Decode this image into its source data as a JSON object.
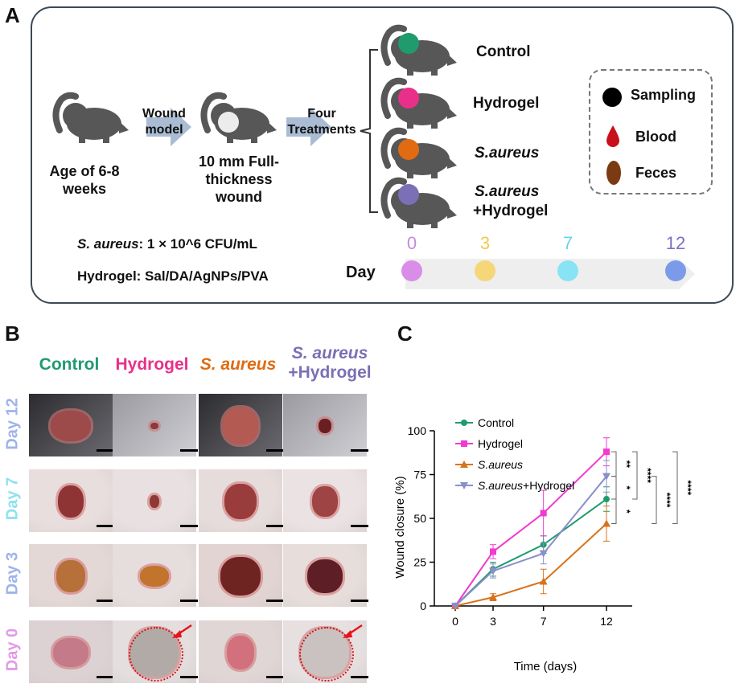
{
  "panelA": {
    "letter": "A",
    "mouse_age": "Age of 6-8 weeks",
    "arrow1_label": "Wound model",
    "wound_label": "10 mm Full-thickness wound",
    "arrow2_label": "Four Treatments",
    "groups": [
      {
        "label": "Control",
        "color": "#1f9b6e"
      },
      {
        "label": "Hydrogel",
        "color": "#e8308a"
      },
      {
        "label": "S.aureus",
        "color": "#e06b12"
      },
      {
        "label_line1": "S.aureus",
        "label_line2": "+Hydrogel",
        "color": "#7b6fb6"
      }
    ],
    "legend": [
      {
        "label": "Sampling",
        "icon": "black-circle-icon"
      },
      {
        "label": "Blood",
        "icon": "blood-drop-icon"
      },
      {
        "label": "Feces",
        "icon": "feces-icon"
      }
    ],
    "saureus_prefix": "S. aureus",
    "saureus_conc": ": 1 × 10^6 CFU/mL",
    "hydrogel_line": "Hydrogel: Sal/DA/AgNPs/PVA",
    "timeline_label": "Day",
    "timeline_days": [
      {
        "day": "0",
        "color": "#d98de8",
        "text_color": "#c58ad9"
      },
      {
        "day": "3",
        "color": "#f5d77a",
        "text_color": "#f2c94c"
      },
      {
        "day": "7",
        "color": "#88e3f5",
        "text_color": "#66d2ef"
      },
      {
        "day": "12",
        "color": "#7b9bea",
        "text_color": "#7a70c4"
      }
    ]
  },
  "panelB": {
    "letter": "B",
    "columns": [
      {
        "label": "Control",
        "color": "#1f9b6e"
      },
      {
        "label": "Hydrogel",
        "color": "#e8308a"
      },
      {
        "label": "S. aureus",
        "color": "#e06b12"
      },
      {
        "label_line1": "S. aureus",
        "label_line2": "+Hydrogel",
        "color": "#7b6fb6"
      }
    ],
    "rows": [
      {
        "label": "Day 12",
        "color": "#9fb3ea"
      },
      {
        "label": "Day 7",
        "color": "#8fe0f0"
      },
      {
        "label": "Day 3",
        "color": "#9fb3ea"
      },
      {
        "label": "Day 0",
        "color": "#e39ae8"
      }
    ]
  },
  "panelC": {
    "letter": "C",
    "chart_data": {
      "type": "line",
      "title": "",
      "xlabel": "Time (days)",
      "ylabel": "Wound closure (%)",
      "x": [
        0,
        3,
        7,
        12
      ],
      "x_tick_labels": [
        "0",
        "3",
        "7",
        "12"
      ],
      "ylim": [
        0,
        100
      ],
      "y_ticks": [
        0,
        25,
        50,
        75,
        100
      ],
      "series": [
        {
          "name": "Control",
          "color": "#1f9b6e",
          "marker": "circle",
          "values": [
            0,
            21,
            35,
            61
          ],
          "errors": [
            0,
            4,
            5,
            7
          ]
        },
        {
          "name": "Hydrogel",
          "color": "#f03ad1",
          "marker": "square",
          "values": [
            0,
            31,
            53,
            88
          ],
          "errors": [
            0,
            4,
            13,
            8
          ]
        },
        {
          "name": "S.aureus",
          "color": "#d8731a",
          "marker": "triangle-up",
          "values": [
            0,
            5,
            14,
            47
          ],
          "errors": [
            0,
            2,
            7,
            10
          ]
        },
        {
          "name": "S.aureus+Hydrogel",
          "color": "#8a8fc9",
          "marker": "triangle-down",
          "values": [
            0,
            20,
            30,
            74
          ],
          "errors": [
            0,
            4,
            6,
            9
          ]
        }
      ],
      "significance": [
        "**",
        "*",
        "*",
        "****",
        "****",
        "****"
      ]
    }
  }
}
